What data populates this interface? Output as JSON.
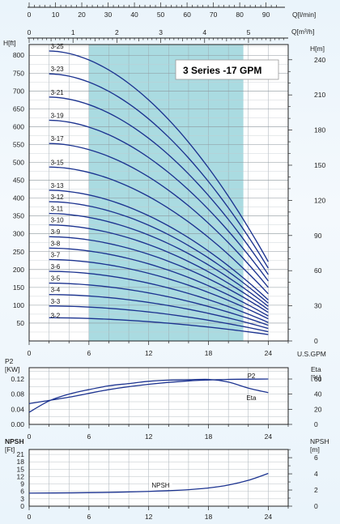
{
  "chart_data": [
    {
      "type": "line",
      "title": "3 Series -17 GPM",
      "x_axis_bottom": {
        "label": "U.S.GPM",
        "ticks": [
          "0",
          "6",
          "12",
          "18",
          "24"
        ],
        "range": [
          0,
          26
        ]
      },
      "x_axis_top_lmin": {
        "label": "Q[l/min]",
        "ticks": [
          "0",
          "10",
          "20",
          "30",
          "40",
          "50",
          "60",
          "70",
          "80",
          "90"
        ]
      },
      "x_axis_top_m3h": {
        "label": "Q[m³/h]",
        "ticks": [
          "0",
          "1",
          "2",
          "3",
          "4",
          "5"
        ]
      },
      "y_axis_left": {
        "label": "H[ft]",
        "ticks": [
          "50",
          "100",
          "150",
          "200",
          "250",
          "300",
          "350",
          "400",
          "450",
          "500",
          "550",
          "600",
          "650",
          "700",
          "750",
          "800"
        ],
        "range": [
          0,
          830
        ]
      },
      "y_axis_right": {
        "label": "H[m]",
        "ticks": [
          "0",
          "30",
          "60",
          "90",
          "120",
          "150",
          "180",
          "210",
          "240"
        ]
      },
      "recommended_range_gpm": [
        6,
        21.5
      ],
      "grid": true,
      "curve_x_range_gpm": [
        2,
        24
      ],
      "series": [
        {
          "name": "3-2",
          "h0": 65,
          "h_end": 18
        },
        {
          "name": "3-3",
          "h0": 98,
          "h_end": 26
        },
        {
          "name": "3-4",
          "h0": 130,
          "h_end": 35
        },
        {
          "name": "3-5",
          "h0": 162,
          "h_end": 44
        },
        {
          "name": "3-6",
          "h0": 195,
          "h_end": 52
        },
        {
          "name": "3-7",
          "h0": 228,
          "h_end": 62
        },
        {
          "name": "3-8",
          "h0": 260,
          "h_end": 70
        },
        {
          "name": "3-9",
          "h0": 292,
          "h_end": 80
        },
        {
          "name": "3-10",
          "h0": 325,
          "h_end": 88
        },
        {
          "name": "3-11",
          "h0": 357,
          "h_end": 97
        },
        {
          "name": "3-12",
          "h0": 390,
          "h_end": 106
        },
        {
          "name": "3-13",
          "h0": 422,
          "h_end": 115
        },
        {
          "name": "3-15",
          "h0": 487,
          "h_end": 132
        },
        {
          "name": "3-17",
          "h0": 553,
          "h_end": 150
        },
        {
          "name": "3-19",
          "h0": 618,
          "h_end": 168
        },
        {
          "name": "3-21",
          "h0": 683,
          "h_end": 186
        },
        {
          "name": "3-23",
          "h0": 748,
          "h_end": 204
        },
        {
          "name": "3-25",
          "h0": 812,
          "h_end": 222
        }
      ]
    },
    {
      "type": "line",
      "x_axis": {
        "ticks": [
          "0",
          "6",
          "12",
          "18",
          "24"
        ],
        "range": [
          0,
          26
        ]
      },
      "y_axis_left": {
        "label": "P2",
        "unit": "[KW]",
        "ticks": [
          "0.00",
          "0.04",
          "0.08",
          "0.12"
        ],
        "range": [
          0,
          0.15
        ]
      },
      "y_axis_right": {
        "label": "Eta",
        "unit": "[%]",
        "ticks": [
          "0",
          "20",
          "40",
          "60"
        ],
        "range": [
          0,
          75
        ]
      },
      "grid": true,
      "series": [
        {
          "name": "P2",
          "axis": "left",
          "x": [
            0,
            4,
            8,
            12,
            16,
            20,
            24
          ],
          "y": [
            0.055,
            0.072,
            0.092,
            0.106,
            0.115,
            0.119,
            0.12
          ]
        },
        {
          "name": "Eta",
          "axis": "right",
          "x": [
            0,
            2,
            4,
            6,
            8,
            10,
            12,
            14,
            16,
            18,
            20,
            22,
            24
          ],
          "y": [
            16,
            31,
            40,
            46,
            51,
            54,
            57,
            58.5,
            59,
            59.5,
            56,
            48,
            42
          ]
        }
      ]
    },
    {
      "type": "line",
      "x_axis": {
        "ticks": [
          "0",
          "6",
          "12",
          "18",
          "24"
        ],
        "range": [
          0,
          26
        ]
      },
      "y_axis_left": {
        "label": "NPSH",
        "unit": "[Ft]",
        "ticks": [
          "0",
          "3",
          "6",
          "9",
          "12",
          "15",
          "18",
          "21"
        ],
        "range": [
          0,
          23
        ]
      },
      "y_axis_right": {
        "label": "NPSH",
        "unit": "[m]",
        "ticks": [
          "0",
          "2",
          "4",
          "6"
        ],
        "range": [
          0,
          7
        ]
      },
      "grid": true,
      "series": [
        {
          "name": "NPSH",
          "x": [
            0,
            4,
            8,
            12,
            14,
            16,
            18,
            20,
            22,
            24
          ],
          "y": [
            5.3,
            5.4,
            5.6,
            6.0,
            6.3,
            6.7,
            7.4,
            8.6,
            10.5,
            13.3
          ]
        }
      ]
    }
  ]
}
